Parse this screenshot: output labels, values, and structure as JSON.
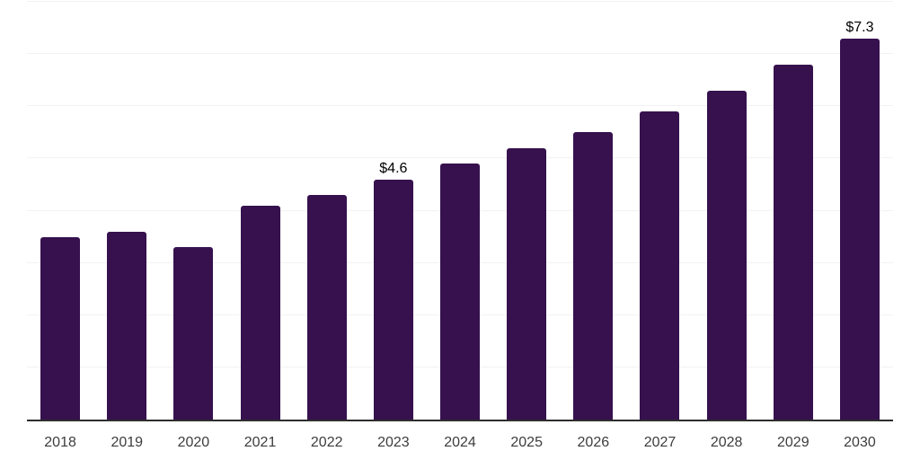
{
  "chart_data": {
    "type": "bar",
    "title": "",
    "xlabel": "",
    "ylabel": "",
    "categories": [
      "2018",
      "2019",
      "2020",
      "2021",
      "2022",
      "2023",
      "2024",
      "2025",
      "2026",
      "2027",
      "2028",
      "2029",
      "2030"
    ],
    "values": [
      3.5,
      3.6,
      3.3,
      4.1,
      4.3,
      4.6,
      4.9,
      5.2,
      5.5,
      5.9,
      6.3,
      6.8,
      7.3
    ],
    "bar_labels": [
      "",
      "",
      "",
      "",
      "",
      "$4.6",
      "",
      "",
      "",
      "",
      "",
      "",
      "$7.3"
    ],
    "ylim": [
      0,
      8
    ],
    "gridline_step": 1,
    "grid": "horizontal",
    "legend": "none",
    "colors": {
      "bar": "#36114E",
      "axis_line": "#2e2e2e",
      "gridline": "#f2f2f2",
      "tick_label": "#3d3d3d",
      "data_label": "#000000",
      "background": "#ffffff"
    }
  }
}
